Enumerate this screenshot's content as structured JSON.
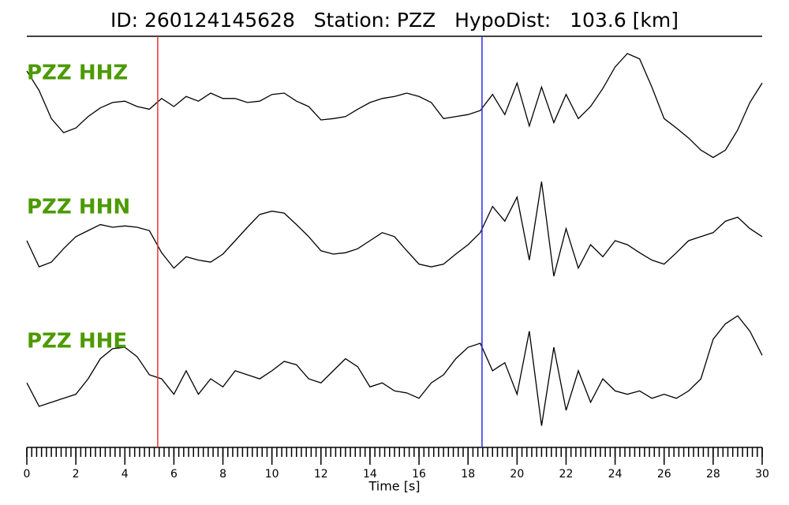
{
  "chart_data": {
    "type": "waveform",
    "title": "ID: 260124145628   Station: PZZ   HypoDist:   103.6 [km]",
    "xlabel": "Time [s]",
    "xlim": [
      0,
      30
    ],
    "xticks": [
      0,
      2,
      4,
      6,
      8,
      10,
      12,
      14,
      16,
      18,
      20,
      22,
      24,
      26,
      28,
      30
    ],
    "minor_xticks": [
      0,
      0.2,
      0.4,
      0.6,
      0.8,
      1,
      1.2,
      1.4,
      1.6,
      1.8,
      2,
      2.2,
      2.4,
      2.6,
      2.8,
      3,
      3.2,
      3.4,
      3.6,
      3.8,
      4,
      4.2,
      4.4,
      4.6,
      4.8,
      5,
      5.2,
      5.4,
      5.6,
      5.8,
      6,
      6.2,
      6.4,
      6.6,
      6.8,
      7,
      7.2,
      7.4,
      7.6,
      7.8,
      8,
      8.2,
      8.4,
      8.6,
      8.8,
      9,
      9.2,
      9.4,
      9.6,
      9.8,
      10,
      10.2,
      10.4,
      10.6,
      10.8,
      11,
      11.2,
      11.4,
      11.6,
      11.8,
      12,
      12.2,
      12.4,
      12.6,
      12.8,
      13,
      13.2,
      13.4,
      13.6,
      13.8,
      14,
      14.2,
      14.4,
      14.6,
      14.8,
      15,
      15.2,
      15.4,
      15.6,
      15.8,
      16,
      16.2,
      16.4,
      16.6,
      16.8,
      17,
      17.2,
      17.4,
      17.6,
      17.8,
      18,
      18.2,
      18.4,
      18.6,
      18.8,
      19,
      19.2,
      19.4,
      19.6,
      19.8,
      20,
      20.2,
      20.4,
      20.6,
      20.8,
      21,
      21.2,
      21.4,
      21.6,
      21.8,
      22,
      22.2,
      22.4,
      22.6,
      22.8,
      23,
      23.2,
      23.4,
      23.6,
      23.8,
      24,
      24.2,
      24.4,
      24.6,
      24.8,
      25,
      25.2,
      25.4,
      25.6,
      25.8,
      26,
      26.2,
      26.4,
      26.6,
      26.8,
      27,
      27.2,
      27.4,
      27.6,
      27.8,
      28,
      28.2,
      28.4,
      28.6,
      28.8,
      29,
      29.2,
      29.4,
      29.6,
      29.8,
      30
    ],
    "ylim": [
      -1,
      1
    ],
    "x": [
      0,
      0.5,
      1,
      1.5,
      2,
      2.5,
      3,
      3.5,
      4,
      4.5,
      5,
      5.5,
      6,
      6.5,
      7,
      7.5,
      8,
      8.5,
      9,
      9.5,
      10,
      10.5,
      11,
      11.5,
      12,
      12.5,
      13,
      13.5,
      14,
      14.5,
      15,
      15.5,
      16,
      16.5,
      17,
      17.5,
      18,
      18.5,
      19,
      19.5,
      20,
      20.5,
      21,
      21.5,
      22,
      22.5,
      23,
      23.5,
      24,
      24.5,
      25,
      25.5,
      26,
      26.5,
      27,
      27.5,
      28,
      28.5,
      29,
      29.5,
      30
    ],
    "label_color": "#4c9a00",
    "series": [
      {
        "name": "PZZ HHZ",
        "color": "#000000",
        "values": [
          0.53,
          0.24,
          -0.18,
          -0.39,
          -0.32,
          -0.15,
          -0.02,
          0.06,
          0.08,
          0,
          -0.04,
          0.12,
          0,
          0.15,
          0.08,
          0.2,
          0.12,
          0.12,
          0.06,
          0.08,
          0.18,
          0.2,
          0.08,
          0,
          -0.2,
          -0.18,
          -0.15,
          -0.04,
          0.06,
          0.12,
          0.15,
          0.2,
          0.15,
          0.06,
          -0.18,
          -0.15,
          -0.12,
          -0.06,
          0.18,
          -0.12,
          0.35,
          -0.29,
          0.29,
          -0.24,
          0.18,
          -0.18,
          0,
          0.27,
          0.59,
          0.79,
          0.71,
          0.29,
          -0.18,
          -0.32,
          -0.47,
          -0.65,
          -0.76,
          -0.65,
          -0.35,
          0.06,
          0.35
        ]
      },
      {
        "name": "PZZ HHN",
        "color": "#000000",
        "values": [
          0,
          -0.39,
          -0.32,
          -0.12,
          0.06,
          0.15,
          0.24,
          0.2,
          0.22,
          0.2,
          0.15,
          -0.18,
          -0.41,
          -0.24,
          -0.29,
          -0.32,
          -0.2,
          0,
          0.2,
          0.39,
          0.44,
          0.41,
          0.24,
          0.06,
          -0.15,
          -0.2,
          -0.18,
          -0.12,
          0,
          0.12,
          0.06,
          -0.15,
          -0.35,
          -0.39,
          -0.35,
          -0.2,
          -0.06,
          0.12,
          0.51,
          0.29,
          0.65,
          -0.29,
          0.88,
          -0.53,
          0.18,
          -0.41,
          -0.06,
          -0.24,
          0,
          -0.06,
          -0.18,
          -0.29,
          -0.35,
          -0.18,
          0,
          0.06,
          0.12,
          0.29,
          0.35,
          0.18,
          0.06
        ]
      },
      {
        "name": "PZZ HHE",
        "color": "#000000",
        "values": [
          -0.12,
          -0.47,
          -0.41,
          -0.35,
          -0.29,
          -0.06,
          0.24,
          0.39,
          0.41,
          0.27,
          0,
          -0.06,
          -0.29,
          0.06,
          -0.29,
          -0.06,
          -0.18,
          0.06,
          0,
          -0.06,
          0.06,
          0.2,
          0.15,
          -0.06,
          -0.12,
          0.06,
          0.24,
          0.12,
          -0.18,
          -0.12,
          -0.24,
          -0.27,
          -0.35,
          -0.12,
          0,
          0.24,
          0.41,
          0.47,
          0.06,
          0.18,
          -0.29,
          0.65,
          -0.76,
          0.41,
          -0.53,
          0.06,
          -0.41,
          -0.06,
          -0.24,
          -0.29,
          -0.24,
          -0.35,
          -0.29,
          -0.35,
          -0.24,
          -0.06,
          0.53,
          0.76,
          0.88,
          0.65,
          0.29
        ]
      }
    ],
    "picks": [
      {
        "x": 5.34,
        "color": "#e8352a"
      },
      {
        "x": 18.57,
        "color": "#2a2ae8"
      }
    ]
  }
}
